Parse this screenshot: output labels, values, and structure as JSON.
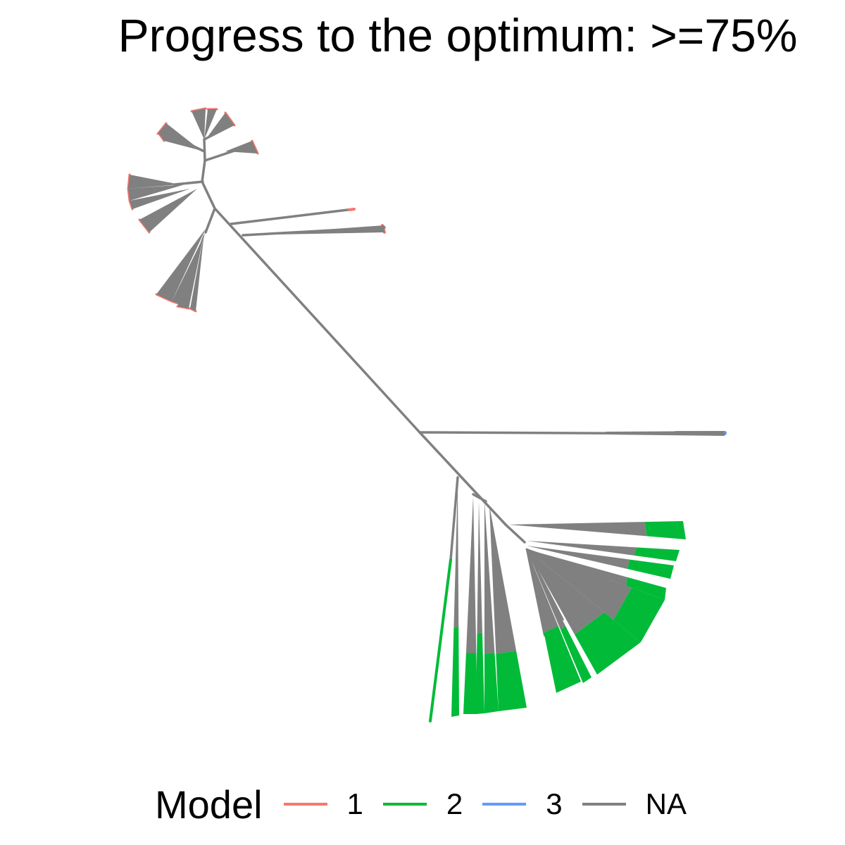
{
  "title": "Progress to the optimum: >=75%",
  "legend": {
    "title": "Model",
    "items": [
      {
        "label": "1",
        "color": "#f8766d"
      },
      {
        "label": "2",
        "color": "#00ba38"
      },
      {
        "label": "3",
        "color": "#619cff"
      },
      {
        "label": "NA",
        "color": "#808080"
      }
    ]
  },
  "tree": {
    "type": "unrooted-phylogenetic-tree",
    "model_colors": {
      "1": "#f8766d",
      "2": "#00ba38",
      "3": "#619cff",
      "NA": "#808080"
    },
    "clades": [
      {
        "name": "upper-left-clade",
        "tip_model": "1"
      },
      {
        "name": "middle-right-long-branch",
        "tip_model": "3"
      },
      {
        "name": "lower-right-clade",
        "tip_model": "2"
      }
    ]
  }
}
